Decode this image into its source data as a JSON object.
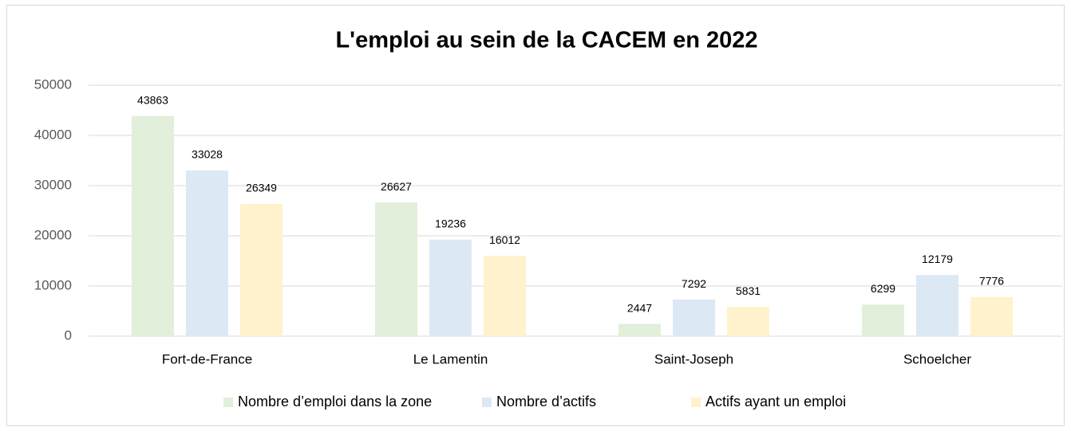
{
  "chart_data": {
    "type": "bar",
    "title": "L'emploi au sein de la CACEM en 2022",
    "categories": [
      "Fort-de-France",
      "Le Lamentin",
      "Saint-Joseph",
      "Schoelcher"
    ],
    "series": [
      {
        "name": "Nombre d’emploi dans la zone",
        "color": "#e2efda",
        "values": [
          43863,
          26627,
          2447,
          6299
        ]
      },
      {
        "name": "Nombre d’actifs",
        "color": "#dde8f5",
        "values": [
          33028,
          19236,
          7292,
          12179
        ]
      },
      {
        "name": "Actifs ayant un emploi",
        "color": "#fff2cc",
        "values": [
          26349,
          16012,
          5831,
          7776
        ]
      }
    ],
    "ylim": [
      0,
      50000
    ],
    "yticks": [
      0,
      10000,
      20000,
      30000,
      40000,
      50000
    ],
    "grid": true,
    "legend": "bottom"
  }
}
